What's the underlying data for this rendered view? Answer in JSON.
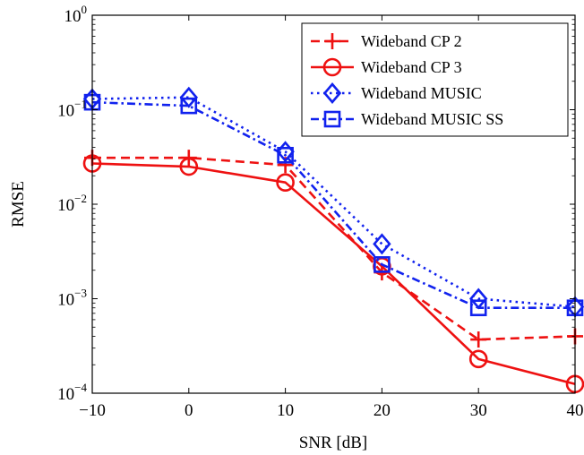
{
  "chart_data": {
    "type": "line",
    "title": "",
    "xlabel": "SNR [dB]",
    "ylabel": "RMSE",
    "xlim": [
      -10,
      40
    ],
    "ylim": [
      0.0001,
      1
    ],
    "yscale": "log",
    "grid": false,
    "legend_position": "top-right",
    "x": [
      -10,
      0,
      10,
      20,
      30,
      40
    ],
    "xticks": [
      "−10",
      "0",
      "10",
      "20",
      "30",
      "40"
    ],
    "yticks": [
      {
        "base": "10",
        "exp": "0",
        "value": 1
      },
      {
        "base": "10",
        "exp": "−1",
        "value": 0.1
      },
      {
        "base": "10",
        "exp": "−2",
        "value": 0.01
      },
      {
        "base": "10",
        "exp": "−3",
        "value": 0.001
      },
      {
        "base": "10",
        "exp": "−4",
        "value": 0.0001
      }
    ],
    "series": [
      {
        "name": "Wideband CP 2",
        "color": "#ee1111",
        "dash": "dashed",
        "marker": "plus",
        "values": [
          0.031,
          0.031,
          0.026,
          0.0019,
          0.00037,
          0.0004
        ]
      },
      {
        "name": "Wideband CP 3",
        "color": "#ee1111",
        "dash": "solid",
        "marker": "circle",
        "values": [
          0.027,
          0.025,
          0.017,
          0.0022,
          0.00023,
          0.000125
        ]
      },
      {
        "name": "Wideband MUSIC",
        "color": "#1122ee",
        "dash": "dotted",
        "marker": "diamond",
        "values": [
          0.13,
          0.135,
          0.036,
          0.0038,
          0.001,
          0.00082
        ]
      },
      {
        "name": "Wideband MUSIC SS",
        "color": "#1122ee",
        "dash": "dashdot",
        "marker": "square",
        "values": [
          0.12,
          0.11,
          0.033,
          0.0023,
          0.0008,
          0.0008
        ]
      }
    ]
  }
}
